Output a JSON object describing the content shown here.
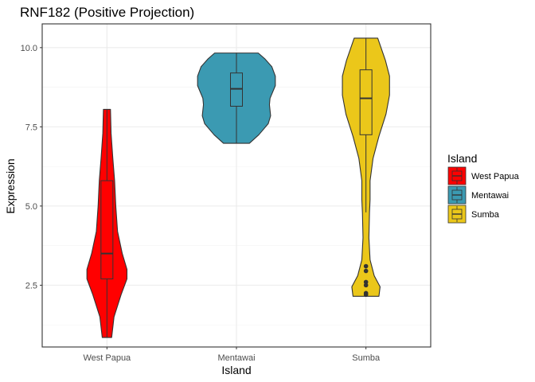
{
  "chart_data": {
    "type": "violin",
    "title": "RNF182 (Positive Projection)",
    "xlabel": "Island",
    "ylabel": "Expression",
    "ylim": [
      0.55,
      10.75
    ],
    "yticks": [
      2.5,
      5.0,
      7.5,
      10.0
    ],
    "ytick_labels": [
      "2.5",
      "5.0",
      "7.5",
      "10.0"
    ],
    "grid": true,
    "legend": {
      "title": "Island",
      "position": "right"
    },
    "categories": [
      "West Papua",
      "Mentawai",
      "Sumba"
    ],
    "series": [
      {
        "name": "West Papua",
        "color": "#FF0000",
        "min": 0.85,
        "q1": 2.7,
        "median": 3.5,
        "q3": 5.8,
        "max": 8.05,
        "outliers": [],
        "density": [
          [
            0.85,
            0.08
          ],
          [
            1.5,
            0.12
          ],
          [
            2.2,
            0.24
          ],
          [
            2.7,
            0.34
          ],
          [
            3.0,
            0.34
          ],
          [
            3.5,
            0.26
          ],
          [
            4.2,
            0.18
          ],
          [
            5.0,
            0.15
          ],
          [
            5.8,
            0.13
          ],
          [
            6.5,
            0.1
          ],
          [
            7.3,
            0.07
          ],
          [
            8.05,
            0.06
          ]
        ]
      },
      {
        "name": "Mentawai",
        "color": "#3B9AB2",
        "min": 6.98,
        "q1": 8.15,
        "median": 8.7,
        "q3": 9.2,
        "max": 9.83,
        "outliers": [],
        "density": [
          [
            6.98,
            0.22
          ],
          [
            7.25,
            0.38
          ],
          [
            7.6,
            0.54
          ],
          [
            7.85,
            0.58
          ],
          [
            8.2,
            0.56
          ],
          [
            8.4,
            0.57
          ],
          [
            8.8,
            0.66
          ],
          [
            9.1,
            0.66
          ],
          [
            9.4,
            0.6
          ],
          [
            9.65,
            0.48
          ],
          [
            9.83,
            0.37
          ]
        ]
      },
      {
        "name": "Sumba",
        "color": "#EBC71A",
        "min": 4.8,
        "q1": 7.25,
        "median": 8.4,
        "q3": 9.3,
        "max": 10.3,
        "outliers": [
          3.1,
          2.95,
          2.6,
          2.5,
          2.25,
          2.2
        ],
        "density": [
          [
            2.15,
            0.22
          ],
          [
            2.45,
            0.24
          ],
          [
            2.8,
            0.14
          ],
          [
            3.3,
            0.07
          ],
          [
            4.0,
            0.05
          ],
          [
            4.8,
            0.06
          ],
          [
            5.2,
            0.07
          ],
          [
            5.8,
            0.07
          ],
          [
            6.5,
            0.12
          ],
          [
            7.2,
            0.22
          ],
          [
            7.9,
            0.34
          ],
          [
            8.5,
            0.4
          ],
          [
            9.1,
            0.4
          ],
          [
            9.6,
            0.33
          ],
          [
            10.3,
            0.2
          ]
        ]
      }
    ]
  }
}
